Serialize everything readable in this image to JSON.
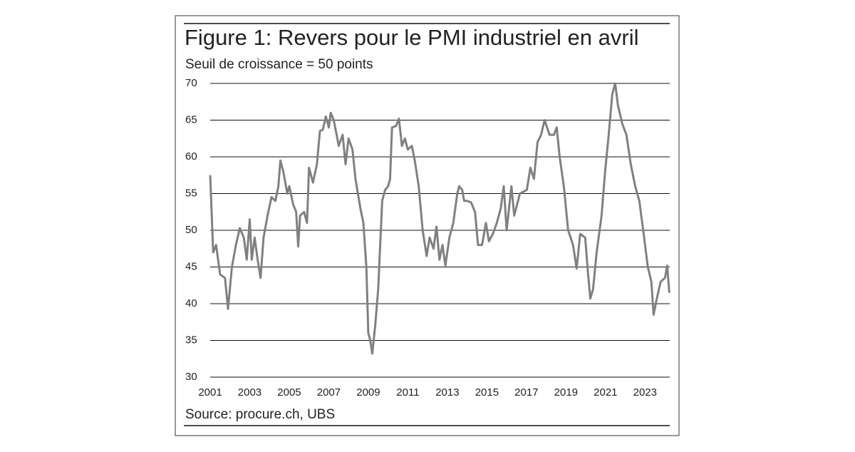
{
  "chart_data": {
    "type": "line",
    "title": "Figure 1: Revers pour le PMI industriel en avril",
    "subtitle": "Seuil de croissance = 50 points",
    "source": "Source: procure.ch, UBS",
    "color": "#808080",
    "grid": true,
    "xlim": [
      2001,
      2024.25
    ],
    "xticks": [
      2001,
      2003,
      2005,
      2007,
      2009,
      2011,
      2013,
      2015,
      2017,
      2019,
      2021,
      2023
    ],
    "ylim": [
      30,
      70
    ],
    "yticks": [
      30,
      35,
      40,
      45,
      50,
      55,
      60,
      65,
      70
    ],
    "x": [
      2001.0,
      2001.15,
      2001.3,
      2001.5,
      2001.75,
      2001.9,
      2002.1,
      2002.3,
      2002.5,
      2002.7,
      2002.85,
      2003.0,
      2003.1,
      2003.25,
      2003.4,
      2003.55,
      2003.7,
      2003.9,
      2004.1,
      2004.3,
      2004.45,
      2004.55,
      2004.7,
      2004.9,
      2005.0,
      2005.2,
      2005.35,
      2005.45,
      2005.55,
      2005.75,
      2005.9,
      2006.0,
      2006.2,
      2006.4,
      2006.55,
      2006.7,
      2006.85,
      2007.0,
      2007.1,
      2007.25,
      2007.4,
      2007.5,
      2007.7,
      2007.85,
      2008.0,
      2008.2,
      2008.35,
      2008.6,
      2008.75,
      2008.9,
      2009.0,
      2009.1,
      2009.2,
      2009.35,
      2009.5,
      2009.7,
      2009.85,
      2010.0,
      2010.1,
      2010.2,
      2010.4,
      2010.55,
      2010.7,
      2010.85,
      2011.0,
      2011.2,
      2011.35,
      2011.55,
      2011.75,
      2011.95,
      2012.1,
      2012.3,
      2012.45,
      2012.6,
      2012.75,
      2012.9,
      2013.1,
      2013.3,
      2013.5,
      2013.6,
      2013.75,
      2013.85,
      2014.0,
      2014.2,
      2014.4,
      2014.55,
      2014.75,
      2014.95,
      2015.1,
      2015.3,
      2015.5,
      2015.7,
      2015.85,
      2016.0,
      2016.24,
      2016.38,
      2016.67,
      2017.02,
      2017.2,
      2017.38,
      2017.56,
      2017.74,
      2017.92,
      2018.17,
      2018.39,
      2018.53,
      2018.68,
      2018.89,
      2019.11,
      2019.36,
      2019.54,
      2019.72,
      2019.97,
      2020.12,
      2020.23,
      2020.37,
      2020.55,
      2020.8,
      2020.98,
      2021.16,
      2021.34,
      2021.49,
      2021.63,
      2021.85,
      2022.06,
      2022.28,
      2022.5,
      2022.71,
      2022.93,
      2023.14,
      2023.32,
      2023.43,
      2023.58,
      2023.79,
      2024.01,
      2024.12,
      2024.23
    ],
    "values": [
      57.5,
      47,
      48,
      44,
      43.5,
      39.3,
      45,
      48,
      50.3,
      49,
      46,
      51.5,
      46,
      49,
      46,
      43.5,
      49,
      52,
      54.5,
      54,
      56,
      59.5,
      58,
      55,
      56,
      53.5,
      52.5,
      47.8,
      52,
      52.5,
      51,
      58.5,
      56.5,
      59,
      63.5,
      63.7,
      65.5,
      64,
      66,
      65,
      63,
      61.5,
      63,
      59,
      62.5,
      61,
      57,
      53,
      51,
      45,
      36,
      35,
      33.2,
      37,
      42,
      54,
      55.5,
      56,
      57,
      64,
      64.2,
      65.2,
      61.5,
      62.5,
      61,
      61.5,
      59.5,
      56,
      50,
      46.5,
      49,
      47.5,
      50.5,
      46,
      48,
      45.2,
      49,
      51,
      55,
      56,
      55.5,
      54,
      54,
      53.8,
      52.5,
      48,
      48,
      51,
      48.5,
      49.5,
      51,
      53,
      56,
      50,
      56,
      52,
      55,
      55.5,
      58.5,
      57,
      62,
      63,
      65,
      63,
      63,
      64,
      60,
      56,
      50,
      48,
      44.8,
      49.5,
      49,
      44,
      40.7,
      42,
      47,
      52,
      58,
      63,
      68.5,
      70,
      67,
      64.5,
      63,
      59,
      56,
      54,
      49.5,
      45,
      43,
      38.5,
      40.5,
      43,
      43.5,
      45.2,
      41.5
    ]
  }
}
